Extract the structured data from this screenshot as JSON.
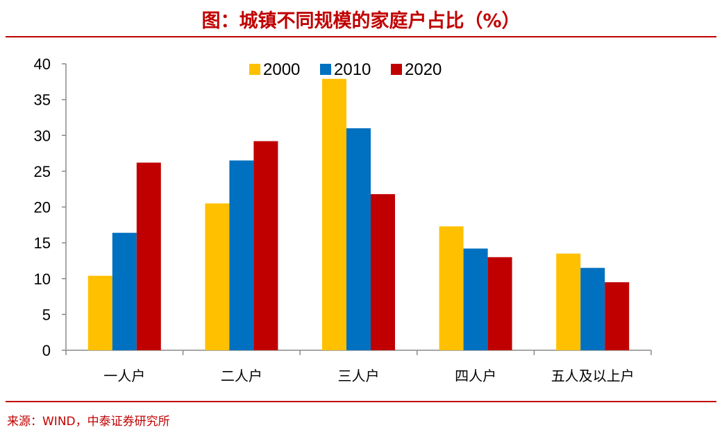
{
  "title": "图：城镇不同规模的家庭户占比（%）",
  "source": "来源：WIND，中泰证券研究所",
  "chart_data": {
    "type": "bar",
    "categories": [
      "一人户",
      "二人户",
      "三人户",
      "四人户",
      "五人及以上户"
    ],
    "series": [
      {
        "name": "2000",
        "color": "#ffc000",
        "values": [
          10.4,
          20.5,
          37.9,
          17.3,
          13.5
        ]
      },
      {
        "name": "2010",
        "color": "#0070c0",
        "values": [
          16.4,
          26.5,
          31.0,
          14.2,
          11.5
        ]
      },
      {
        "name": "2020",
        "color": "#c00000",
        "values": [
          26.2,
          29.2,
          21.8,
          13.0,
          9.5
        ]
      }
    ],
    "ylim": [
      0,
      40
    ],
    "yticks": [
      "0",
      "5",
      "10",
      "15",
      "20",
      "25",
      "30",
      "35",
      "40"
    ],
    "legend_position": "top-center",
    "grid": false
  }
}
